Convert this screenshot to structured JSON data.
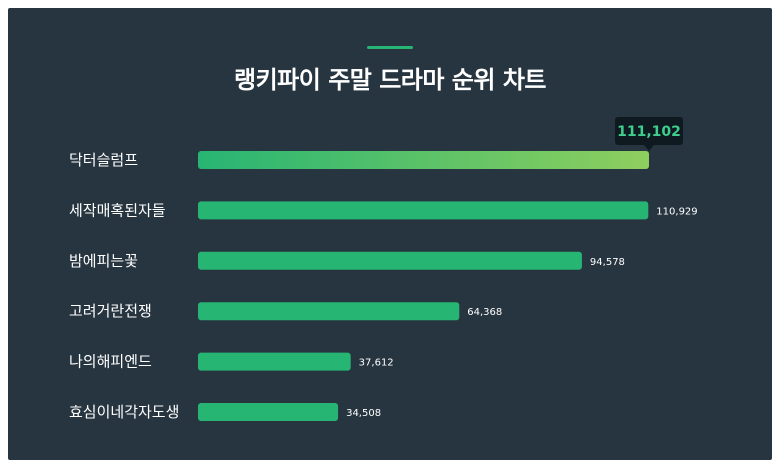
{
  "chart_data": {
    "type": "bar",
    "orientation": "horizontal",
    "title": "랭키파이 주말 드라마 순위 차트",
    "categories": [
      "닥터슬럼프",
      "세작매혹된자들",
      "밤에피는꽃",
      "고려거란전쟁",
      "나의해피엔드",
      "효심이네각자도생"
    ],
    "values": [
      111102,
      110929,
      94578,
      64368,
      37612,
      34508
    ],
    "value_labels": [
      "111,102",
      "110,929",
      "94,578",
      "64,368",
      "37,612",
      "34,508"
    ],
    "highlight_index": 0,
    "xlim": [
      0,
      111102
    ],
    "grid": false,
    "legend": "none"
  },
  "colors": {
    "background": "#263540",
    "bar": "#27b573",
    "highlight_start": "#27b573",
    "highlight_end": "#8fcf5e",
    "tooltip_bg": "#0f1a20",
    "tooltip_text": "#3ecf8e",
    "text": "#ffffff"
  }
}
